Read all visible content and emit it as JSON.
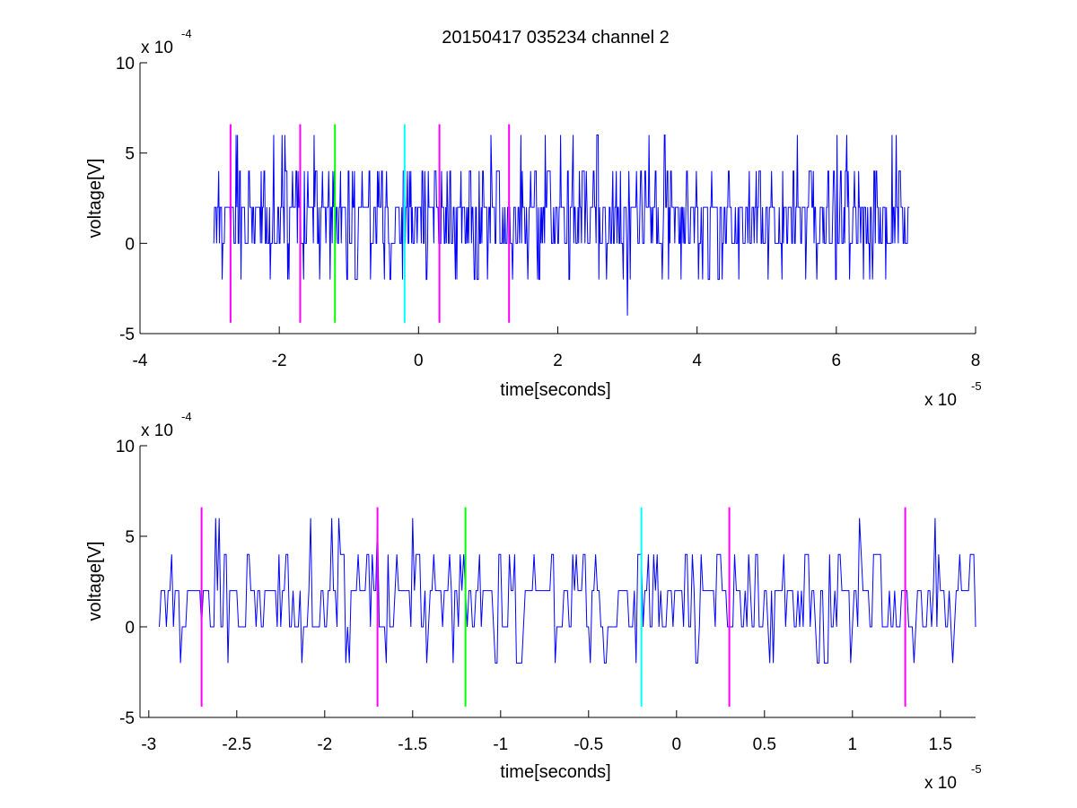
{
  "figure_title": "20150417 035234 channel 2",
  "colors": {
    "trace": "#0000ff",
    "magenta": "#ff00ff",
    "green": "#00ff00",
    "cyan": "#00ffff"
  },
  "chart_data": [
    {
      "type": "line",
      "title": "20150417 035234 channel 2",
      "xlabel": "time[seconds]",
      "ylabel": "voltage[V]",
      "x_multiplier": "x 10",
      "x_multiplier_exp": "-5",
      "y_multiplier": "x 10",
      "y_multiplier_exp": "-4",
      "xlim": [
        -4e-05,
        8e-05
      ],
      "ylim": [
        -0.0005,
        0.001
      ],
      "xticks": [
        -4,
        -2,
        0,
        2,
        4,
        6,
        8
      ],
      "xtick_labels": [
        "-4",
        "-2",
        "0",
        "2",
        "4",
        "6",
        "8"
      ],
      "yticks": [
        -5,
        0,
        5,
        10
      ],
      "ytick_labels": [
        "-5",
        "0",
        "5",
        "10"
      ],
      "grid": false,
      "box": false,
      "series": [
        {
          "kind": "signal",
          "color": "#0000ff",
          "x_start": -2.94e-05,
          "x_step": 1e-07,
          "seed": 17,
          "count": 1000,
          "levels": [
            -0.0002,
            0,
            0.0002,
            0.0004,
            0.0006
          ],
          "level_weights": [
            0.06,
            0.32,
            0.46,
            0.14,
            0.02
          ],
          "spikes": [
            {
              "x": 3e-05,
              "y": -0.0004
            },
            {
              "x": 6.8e-05,
              "y": 0.0006
            },
            {
              "x": -2.6e-05,
              "y": 0.0006
            }
          ]
        }
      ],
      "markers": [
        {
          "x": -2.7e-05,
          "color": "#ff00ff"
        },
        {
          "x": -1.7e-05,
          "color": "#ff00ff"
        },
        {
          "x": -1.2e-05,
          "color": "#00ff00"
        },
        {
          "x": -2e-06,
          "color": "#00ffff"
        },
        {
          "x": 3e-06,
          "color": "#ff00ff"
        },
        {
          "x": 1.3e-05,
          "color": "#ff00ff"
        }
      ],
      "marker_ylim": [
        -0.00044,
        0.00066
      ]
    },
    {
      "type": "line",
      "title": "",
      "xlabel": "time[seconds]",
      "ylabel": "voltage[V]",
      "x_multiplier": "x 10",
      "x_multiplier_exp": "-5",
      "y_multiplier": "x 10",
      "y_multiplier_exp": "-4",
      "xlim": [
        -3.05e-05,
        1.7e-05
      ],
      "ylim": [
        -0.0005,
        0.001
      ],
      "xticks": [
        -3,
        -2.5,
        -2,
        -1.5,
        -1,
        -0.5,
        0,
        0.5,
        1,
        1.5
      ],
      "xtick_labels": [
        "-3",
        "-2.5",
        "-2",
        "-1.5",
        "-1",
        "-0.5",
        "0",
        "0.5",
        "1",
        "1.5"
      ],
      "yticks": [
        -5,
        0,
        5,
        10
      ],
      "ytick_labels": [
        "-5",
        "0",
        "5",
        "10"
      ],
      "grid": false,
      "box": false,
      "series": [
        {
          "kind": "signal",
          "color": "#0000ff",
          "x_start": -2.94e-05,
          "x_step": 1e-07,
          "seed": 17,
          "count": 465,
          "levels": [
            -0.0002,
            0,
            0.0002,
            0.0004,
            0.0006
          ],
          "level_weights": [
            0.06,
            0.32,
            0.46,
            0.14,
            0.02
          ],
          "spikes": [
            {
              "x": -2.6e-05,
              "y": 0.0006
            }
          ]
        }
      ],
      "markers": [
        {
          "x": -2.7e-05,
          "color": "#ff00ff"
        },
        {
          "x": -1.7e-05,
          "color": "#ff00ff"
        },
        {
          "x": -1.2e-05,
          "color": "#00ff00"
        },
        {
          "x": -2e-06,
          "color": "#00ffff"
        },
        {
          "x": 3e-06,
          "color": "#ff00ff"
        },
        {
          "x": 1.3e-05,
          "color": "#ff00ff"
        }
      ],
      "marker_ylim": [
        -0.00044,
        0.00066
      ]
    }
  ]
}
